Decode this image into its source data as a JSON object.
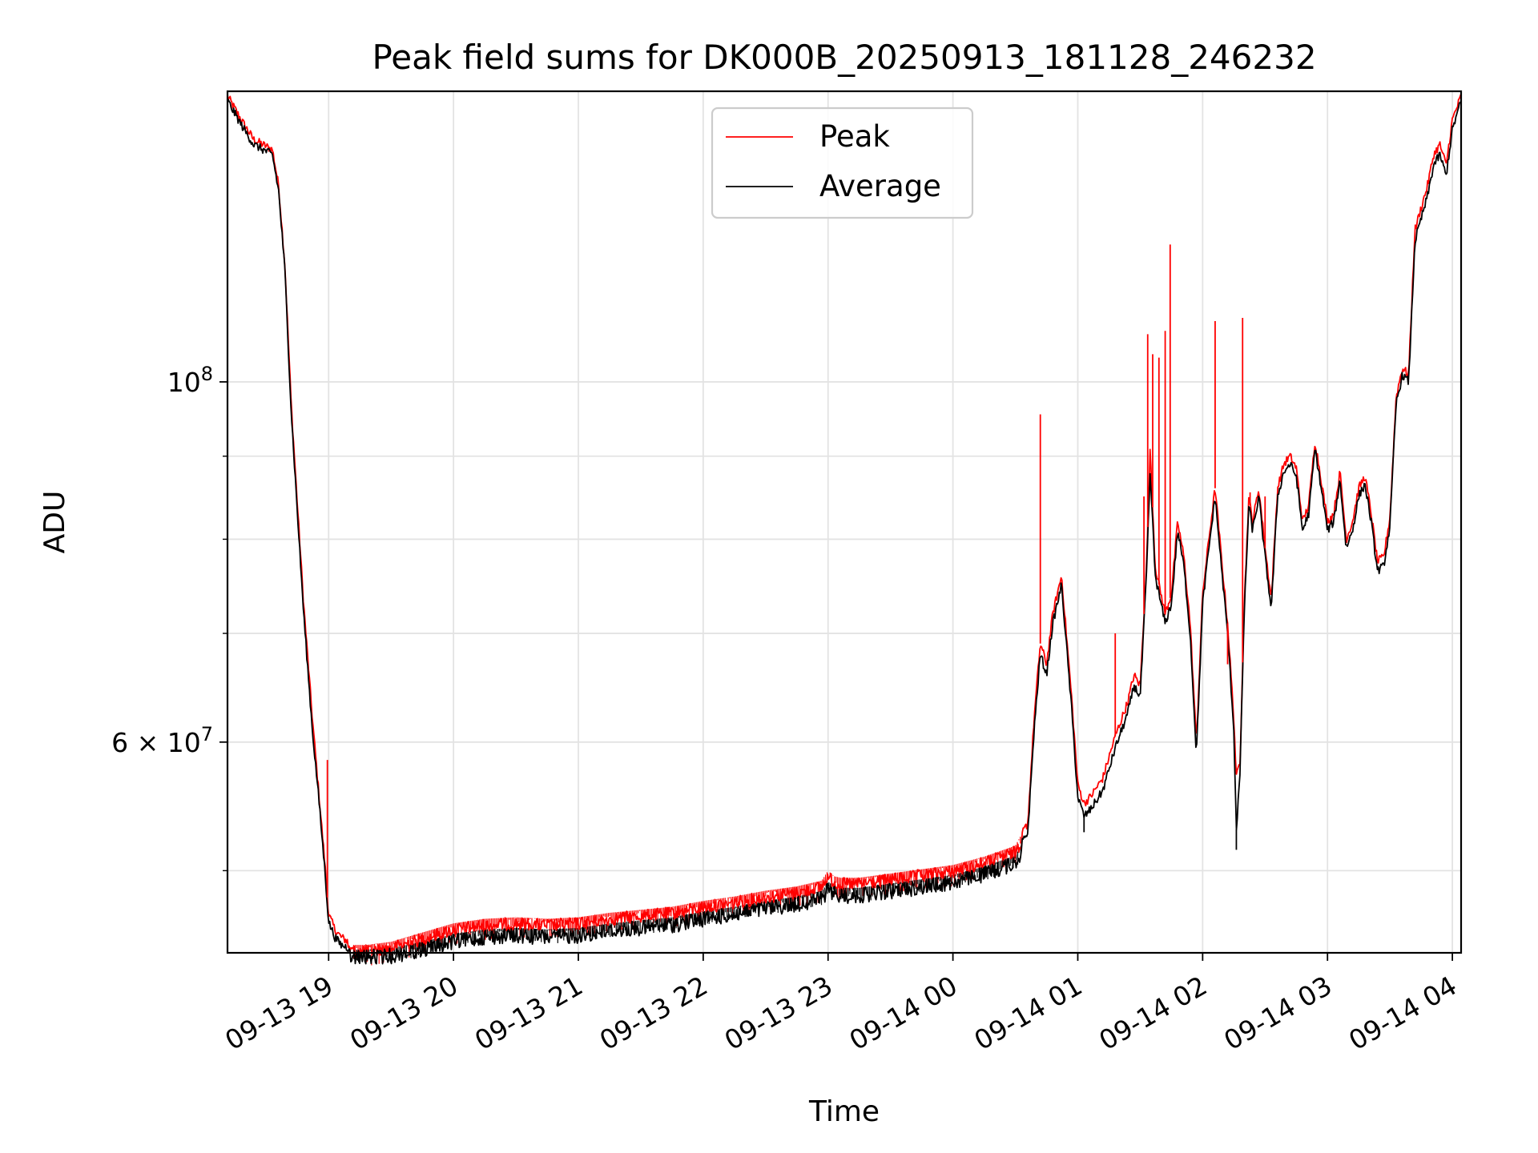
{
  "chart_data": {
    "type": "line",
    "title": "Peak field sums for DK000B_20250913_181128_246232",
    "xlabel": "Time",
    "ylabel": "ADU",
    "yscale": "log",
    "ylim": [
      44500000,
      151000000
    ],
    "xlim_hours": [
      18.19,
      28.07
    ],
    "grid": true,
    "legend_location": "upper center",
    "x_ticks": [
      {
        "hour": 19,
        "label": "09-13 19"
      },
      {
        "hour": 20,
        "label": "09-13 20"
      },
      {
        "hour": 21,
        "label": "09-13 21"
      },
      {
        "hour": 22,
        "label": "09-13 22"
      },
      {
        "hour": 23,
        "label": "09-13 23"
      },
      {
        "hour": 24,
        "label": "09-14 00"
      },
      {
        "hour": 25,
        "label": "09-14 01"
      },
      {
        "hour": 26,
        "label": "09-14 02"
      },
      {
        "hour": 27,
        "label": "09-14 03"
      },
      {
        "hour": 28,
        "label": "09-14 04"
      }
    ],
    "y_major_ticks": [
      {
        "value": 100000000,
        "base": "10",
        "exp": "8"
      },
      {
        "value": 60000000,
        "base": "6 × 10",
        "exp": "7"
      }
    ],
    "y_minor_ticks": [
      50000000,
      70000000,
      80000000,
      90000000
    ],
    "series": [
      {
        "name": "Peak",
        "color": "#ff0000",
        "x_hours": [
          18.19,
          18.3,
          18.4,
          18.55,
          18.6,
          18.65,
          18.7,
          18.75,
          18.8,
          18.87,
          18.92,
          18.97,
          19.0,
          19.05,
          19.1,
          19.2,
          19.3,
          19.5,
          19.75,
          20.0,
          20.25,
          20.5,
          20.75,
          21.0,
          21.25,
          21.5,
          21.75,
          22.0,
          22.25,
          22.5,
          22.75,
          22.95,
          23.0,
          23.05,
          23.1,
          23.25,
          23.5,
          23.75,
          24.0,
          24.25,
          24.5,
          24.6,
          24.65,
          24.7,
          24.75,
          24.8,
          24.87,
          24.95,
          25.0,
          25.05,
          25.1,
          25.2,
          25.3,
          25.4,
          25.45,
          25.5,
          25.55,
          25.58,
          25.62,
          25.65,
          25.7,
          25.75,
          25.8,
          25.85,
          25.9,
          25.95,
          26.0,
          26.05,
          26.1,
          26.15,
          26.2,
          26.25,
          26.27,
          26.3,
          26.33,
          26.37,
          26.4,
          26.45,
          26.5,
          26.55,
          26.6,
          26.65,
          26.7,
          26.75,
          26.8,
          26.85,
          26.9,
          26.95,
          27.0,
          27.05,
          27.1,
          27.15,
          27.2,
          27.25,
          27.3,
          27.35,
          27.4,
          27.45,
          27.5,
          27.55,
          27.6,
          27.65,
          27.7,
          27.75,
          27.8,
          27.85,
          27.9,
          27.95,
          28.0,
          28.07
        ],
        "values": [
          150000000,
          145000000,
          141000000,
          139000000,
          132000000,
          118000000,
          97000000,
          84000000,
          73000000,
          62000000,
          56000000,
          50500000,
          47000000,
          46000000,
          45500000,
          45000000,
          45000000,
          45200000,
          45800000,
          46400000,
          46700000,
          46800000,
          46700000,
          46800000,
          47100000,
          47300000,
          47500000,
          47900000,
          48200000,
          48600000,
          48900000,
          49300000,
          50000000,
          49600000,
          49500000,
          49500000,
          49800000,
          50100000,
          50400000,
          51000000,
          51800000,
          53500000,
          62000000,
          69000000,
          67000000,
          72000000,
          76000000,
          64000000,
          56500000,
          55000000,
          55500000,
          57000000,
          60500000,
          63500000,
          66000000,
          65000000,
          77000000,
          91000000,
          77000000,
          75000000,
          72000000,
          74000000,
          82000000,
          78000000,
          71000000,
          60000000,
          74000000,
          80000000,
          86000000,
          78000000,
          71000000,
          62000000,
          57000000,
          58500000,
          72000000,
          85000000,
          82000000,
          86000000,
          79000000,
          73500000,
          86000000,
          89000000,
          90000000,
          88500000,
          82000000,
          84000000,
          92000000,
          87000000,
          82000000,
          83000000,
          88000000,
          80000000,
          82000000,
          86000000,
          87500000,
          83000000,
          77500000,
          78000000,
          82500000,
          98000000,
          102000000,
          101000000,
          124000000,
          128000000,
          132000000,
          138000000,
          140000000,
          136000000,
          145000000,
          150000000
        ]
      },
      {
        "name": "Average",
        "color": "#000000",
        "x_hours": [
          18.19,
          18.3,
          18.4,
          18.55,
          18.6,
          18.65,
          18.7,
          18.75,
          18.8,
          18.87,
          18.92,
          18.97,
          19.0,
          19.05,
          19.1,
          19.2,
          19.3,
          19.5,
          19.75,
          20.0,
          20.25,
          20.5,
          20.75,
          21.0,
          21.25,
          21.5,
          21.75,
          22.0,
          22.25,
          22.5,
          22.75,
          22.95,
          23.0,
          23.05,
          23.1,
          23.25,
          23.5,
          23.75,
          24.0,
          24.25,
          24.5,
          24.6,
          24.65,
          24.7,
          24.75,
          24.8,
          24.87,
          24.95,
          25.0,
          25.05,
          25.1,
          25.2,
          25.3,
          25.4,
          25.45,
          25.5,
          25.55,
          25.58,
          25.62,
          25.65,
          25.7,
          25.75,
          25.8,
          25.85,
          25.9,
          25.95,
          26.0,
          26.05,
          26.1,
          26.15,
          26.2,
          26.25,
          26.27,
          26.3,
          26.33,
          26.37,
          26.4,
          26.45,
          26.5,
          26.55,
          26.6,
          26.65,
          26.7,
          26.75,
          26.8,
          26.85,
          26.9,
          26.95,
          27.0,
          27.05,
          27.1,
          27.15,
          27.2,
          27.25,
          27.3,
          27.35,
          27.4,
          27.45,
          27.5,
          27.55,
          27.6,
          27.65,
          27.7,
          27.75,
          27.8,
          27.85,
          27.9,
          27.95,
          28.0,
          28.07
        ],
        "values": [
          149000000,
          144000000,
          140000000,
          138000000,
          131000000,
          117000000,
          96000000,
          83000000,
          72000000,
          61000000,
          55500000,
          50000000,
          46500000,
          45500000,
          45000000,
          44700000,
          44700000,
          44800000,
          45200000,
          45700000,
          46000000,
          46100000,
          46000000,
          46100000,
          46400000,
          46600000,
          46800000,
          47200000,
          47500000,
          47900000,
          48200000,
          48600000,
          49200000,
          48900000,
          48800000,
          48800000,
          49100000,
          49400000,
          49700000,
          50300000,
          51100000,
          52800000,
          61000000,
          68000000,
          66000000,
          71000000,
          75000000,
          63000000,
          55500000,
          54000000,
          54500000,
          56000000,
          59500000,
          62500000,
          65000000,
          64000000,
          76000000,
          88000000,
          76000000,
          74000000,
          71000000,
          73000000,
          81000000,
          77000000,
          70000000,
          59000000,
          73000000,
          79000000,
          85000000,
          77000000,
          70000000,
          61000000,
          53000000,
          57500000,
          71000000,
          84000000,
          81000000,
          85000000,
          78000000,
          72500000,
          85000000,
          88000000,
          89000000,
          87500000,
          81000000,
          83000000,
          91000000,
          86000000,
          81000000,
          82000000,
          87000000,
          79000000,
          81000000,
          85000000,
          86500000,
          82000000,
          76500000,
          77000000,
          81500000,
          97000000,
          101000000,
          100000000,
          122000000,
          126000000,
          130000000,
          136000000,
          138000000,
          134000000,
          143000000,
          149000000
        ]
      }
    ],
    "spikes": [
      {
        "series": "Peak",
        "hour": 18.99,
        "value": 58500000
      },
      {
        "series": "Peak",
        "hour": 24.7,
        "value": 95500000
      },
      {
        "series": "Peak",
        "hour": 25.3,
        "value": 70000000
      },
      {
        "series": "Peak",
        "hour": 25.53,
        "value": 85000000
      },
      {
        "series": "Peak",
        "hour": 25.56,
        "value": 107000000
      },
      {
        "series": "Peak",
        "hour": 25.6,
        "value": 104000000
      },
      {
        "series": "Peak",
        "hour": 25.65,
        "value": 103500000
      },
      {
        "series": "Peak",
        "hour": 25.7,
        "value": 107500000
      },
      {
        "series": "Peak",
        "hour": 25.74,
        "value": 121500000
      },
      {
        "series": "Peak",
        "hour": 26.1,
        "value": 109000000
      },
      {
        "series": "Peak",
        "hour": 26.2,
        "value": 67000000
      },
      {
        "series": "Peak",
        "hour": 26.32,
        "value": 109500000
      },
      {
        "series": "Peak",
        "hour": 26.38,
        "value": 85500000
      },
      {
        "series": "Peak",
        "hour": 26.5,
        "value": 85000000
      },
      {
        "series": "Average",
        "hour": 26.27,
        "value": 51500000
      },
      {
        "series": "Average",
        "hour": 25.05,
        "value": 52800000
      }
    ]
  }
}
